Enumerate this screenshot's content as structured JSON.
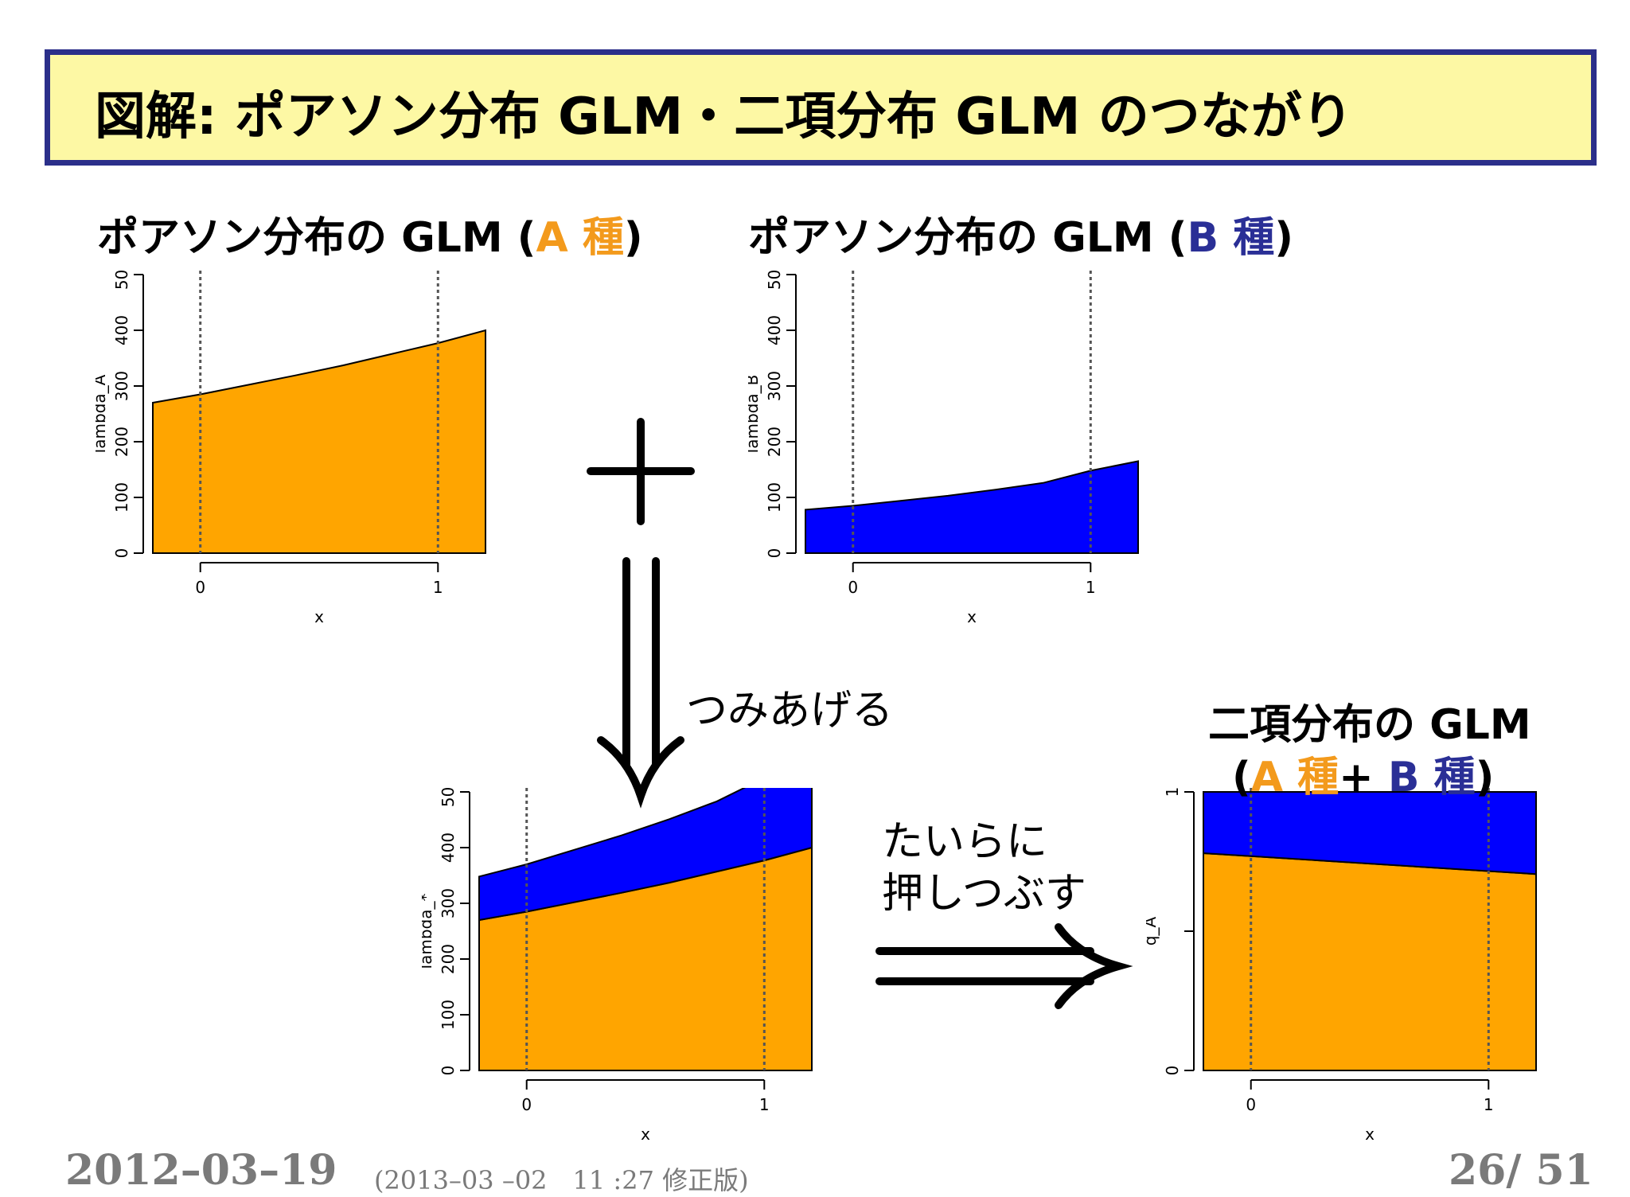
{
  "title": "図解: ポアソン分布 GLM・二項分布 GLM のつながり",
  "panel_a_label": {
    "prefix": "ポアソン分布の GLM (",
    "species": "A 種",
    "suffix": ")"
  },
  "panel_b_label": {
    "prefix": "ポアソン分布の GLM (",
    "species": "B 種",
    "suffix": ")"
  },
  "stack_label": "つみあげる",
  "flatten_label": [
    "たいらに",
    "押しつぶす"
  ],
  "binom_label": {
    "line1": "二項分布の GLM",
    "open": "(",
    "species_a": "A 種",
    "plus": "+ ",
    "species_b": "B 種",
    "close": ")"
  },
  "footer": {
    "date": "2012–03–19",
    "revision": "(2013–03 –02　11 :27  修正版)",
    "page": "26/ 51"
  },
  "colors": {
    "orange": "#ffa500",
    "blue": "#0000ff",
    "title_bg": "#fdf8a4",
    "title_border": "#2b2f8a"
  },
  "chart_data": [
    {
      "type": "area",
      "xlabel": "x",
      "ylabel": "lambda_A",
      "xlim": [
        -0.2,
        1.2
      ],
      "ylim": [
        0,
        500
      ],
      "xticks": [
        "0",
        "1"
      ],
      "yticks": [
        "0",
        "100",
        "200",
        "300",
        "400",
        "500"
      ],
      "vlines": [
        0,
        1
      ],
      "x": [
        -0.2,
        0,
        0.2,
        0.4,
        0.6,
        0.8,
        1.0,
        1.2
      ],
      "series": [
        {
          "name": "A 種",
          "color": "#ffa500",
          "values": [
            270,
            285,
            302,
            319,
            337,
            357,
            377,
            400
          ]
        }
      ]
    },
    {
      "type": "area",
      "xlabel": "x",
      "ylabel": "lambda_B",
      "xlim": [
        -0.2,
        1.2
      ],
      "ylim": [
        0,
        500
      ],
      "xticks": [
        "0",
        "1"
      ],
      "yticks": [
        "0",
        "100",
        "200",
        "300",
        "400",
        "500"
      ],
      "vlines": [
        0,
        1
      ],
      "x": [
        -0.2,
        0,
        0.2,
        0.4,
        0.6,
        0.8,
        1.0,
        1.2
      ],
      "series": [
        {
          "name": "B 種",
          "color": "#0000ff",
          "values": [
            78,
            85,
            94,
            103,
            114,
            126,
            148,
            165
          ]
        }
      ]
    },
    {
      "type": "area",
      "xlabel": "x",
      "ylabel": "lambda_*",
      "xlim": [
        -0.2,
        1.2
      ],
      "ylim": [
        0,
        500
      ],
      "xticks": [
        "0",
        "1"
      ],
      "yticks": [
        "0",
        "100",
        "200",
        "300",
        "400",
        "500"
      ],
      "vlines": [
        0,
        1
      ],
      "x": [
        -0.2,
        0,
        0.2,
        0.4,
        0.6,
        0.8,
        1.0,
        1.2
      ],
      "series": [
        {
          "name": "A 種",
          "color": "#ffa500",
          "values": [
            270,
            285,
            302,
            319,
            337,
            357,
            377,
            400
          ]
        },
        {
          "name": "B 種",
          "color": "#0000ff",
          "values": [
            78,
            85,
            94,
            103,
            114,
            126,
            148,
            165
          ]
        }
      ]
    },
    {
      "type": "area",
      "xlabel": "x",
      "ylabel": "q_A",
      "xlim": [
        -0.2,
        1.2
      ],
      "ylim": [
        0,
        1
      ],
      "xticks": [
        "0",
        "1"
      ],
      "yticks": [
        "0",
        "",
        "1"
      ],
      "vlines": [
        0,
        1
      ],
      "x": [
        -0.2,
        1.2
      ],
      "series": [
        {
          "name": "A 種",
          "color": "#ffa500",
          "values": [
            0.78,
            0.705
          ]
        },
        {
          "name": "B 種",
          "color": "#0000ff",
          "values": [
            0.22,
            0.295
          ]
        }
      ]
    }
  ]
}
